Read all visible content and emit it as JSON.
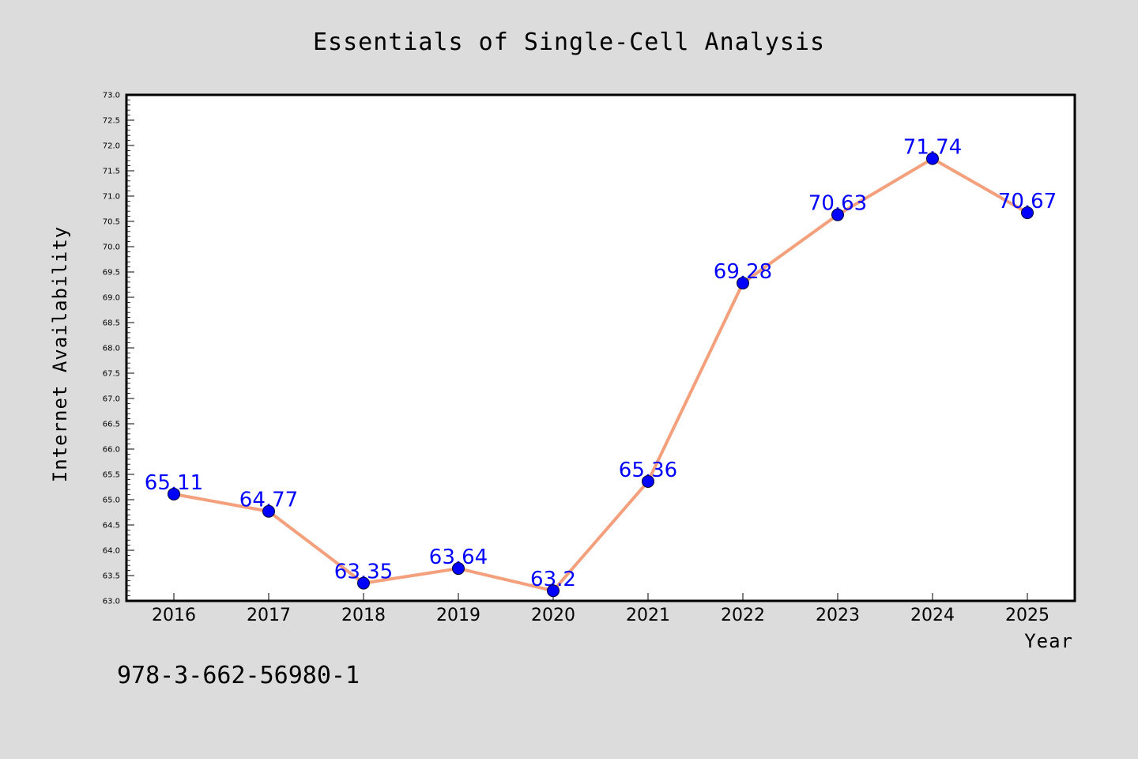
{
  "chart_data": {
    "type": "line",
    "title": "Essentials of Single-Cell Analysis",
    "xlabel": "Year",
    "ylabel": "Internet Availability",
    "categories": [
      "2016",
      "2017",
      "2018",
      "2019",
      "2020",
      "2021",
      "2022",
      "2023",
      "2024",
      "2025"
    ],
    "series": [
      {
        "values": [
          65.11,
          64.77,
          63.35,
          63.64,
          63.2,
          65.36,
          69.28,
          70.63,
          71.74,
          70.67
        ],
        "data_labels": [
          "65.11",
          "64.77",
          "63.35",
          "63.64",
          "63.2",
          "65.36",
          "69.28",
          "70.63",
          "71.74",
          "70.67"
        ],
        "line_color": "#f4a07c",
        "marker_color": "#0000ff",
        "label_color": "#0000ff"
      }
    ],
    "ylim": [
      63.0,
      73.0
    ],
    "yticks": [
      "63.0",
      "63.5",
      "64.0",
      "64.5",
      "65.0",
      "65.5",
      "66.0",
      "66.5",
      "67.0",
      "67.5",
      "68.0",
      "68.5",
      "69.0",
      "69.5",
      "70.0",
      "70.5",
      "71.0",
      "71.5",
      "72.0",
      "72.5",
      "73.0"
    ],
    "grid": false,
    "legend": "none"
  },
  "footer": {
    "isbn": "978-3-662-56980-1"
  },
  "colors": {
    "background": "#dcdcdc",
    "plot_background": "#ffffff"
  }
}
